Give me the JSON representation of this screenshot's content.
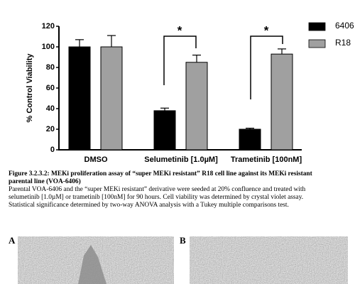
{
  "chart_data": {
    "type": "bar",
    "ylabel": "% Control Viability",
    "categories": [
      "DMSO",
      "Selumetinib [1.0µM]",
      "Trametinib [100nM]"
    ],
    "series": [
      {
        "name": "6406",
        "color": "#000000",
        "values": [
          100,
          38,
          20
        ],
        "errors": [
          7,
          2.5,
          1
        ]
      },
      {
        "name": "R18",
        "color": "#a0a0a0",
        "values": [
          100,
          85,
          93
        ],
        "errors": [
          11,
          7,
          5
        ]
      }
    ],
    "ylim": [
      0,
      120
    ],
    "yticks": [
      0,
      20,
      40,
      60,
      80,
      100,
      120
    ],
    "annotations": [
      "*",
      "*"
    ]
  },
  "caption": {
    "title_lines": [
      "Figure 3.2.3.2: MEKi proliferation assay of “super MEKi resistant” R18 cell line against its MEKi resistant",
      "parental line (VOA-6406)"
    ],
    "body_lines": [
      "Parental VOA-6406 and the “super MEKi resistant” derivative were seeded at 20% confluence and treated with",
      "selumetinib [1.0µM] or trametinib [100nM] for 90 hours. Cell viability was determined by crystal violet assay.",
      "Statistical significance determined by two-way ANOVA analysis with a Tukey multiple comparisons test."
    ]
  },
  "panels": [
    "A",
    "B"
  ]
}
